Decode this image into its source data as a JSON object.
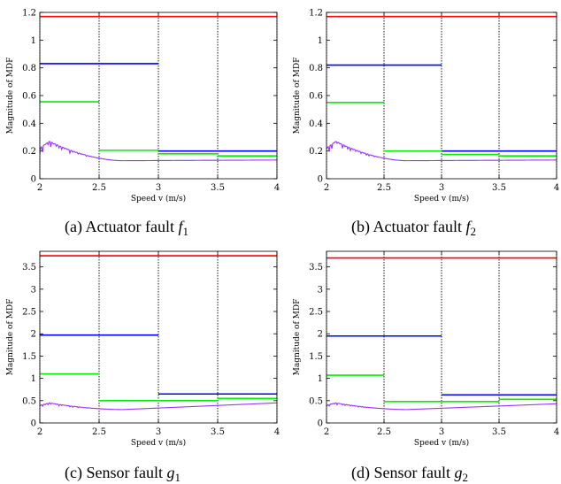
{
  "colors": {
    "red": "#ff0000",
    "blue": "#0000ff",
    "green": "#00ee00",
    "purple": "#9933ff"
  },
  "chart_data": [
    {
      "type": "line",
      "caption_prefix": "(a) Actuator fault",
      "caption_sym": "f",
      "caption_sub": "1",
      "xlabel": "Speed v (m/s)",
      "ylabel": "Magnitude of MDF",
      "xlim": [
        2,
        4
      ],
      "ylim": [
        0,
        1.2
      ],
      "xticks": [
        "2",
        "2.5",
        "3",
        "3.5",
        "4"
      ],
      "yticks": [
        "0",
        "0.2",
        "0.4",
        "0.6",
        "0.8",
        "1",
        "1.2"
      ],
      "vlines": [
        2,
        2.5,
        3,
        3.5,
        4
      ],
      "series": [
        {
          "color": "red",
          "segments": [
            [
              2,
              4,
              1.17
            ]
          ]
        },
        {
          "color": "blue",
          "segments": [
            [
              2,
              3,
              0.83
            ],
            [
              3,
              4,
              0.2
            ]
          ]
        },
        {
          "color": "green",
          "segments": [
            [
              2,
              2.5,
              0.555
            ],
            [
              2.5,
              3,
              0.205
            ],
            [
              3,
              3.5,
              0.18
            ],
            [
              3.5,
              4,
              0.165
            ]
          ]
        },
        {
          "color": "purple",
          "curve": {
            "base": 0.13,
            "peak": 0.27,
            "end": 0.135
          }
        }
      ]
    },
    {
      "type": "line",
      "caption_prefix": "(b) Actuator fault",
      "caption_sym": "f",
      "caption_sub": "2",
      "xlabel": "Speed v (m/s)",
      "ylabel": "Magnitude of MDF",
      "xlim": [
        2,
        4
      ],
      "ylim": [
        0,
        1.2
      ],
      "xticks": [
        "2",
        "2.5",
        "3",
        "3.5",
        "4"
      ],
      "yticks": [
        "0",
        "0.2",
        "0.4",
        "0.6",
        "0.8",
        "1",
        "1.2"
      ],
      "vlines": [
        2,
        2.5,
        3,
        3.5,
        4
      ],
      "series": [
        {
          "color": "red",
          "segments": [
            [
              2,
              4,
              1.17
            ]
          ]
        },
        {
          "color": "blue",
          "segments": [
            [
              2,
              3,
              0.82
            ],
            [
              3,
              4,
              0.2
            ]
          ]
        },
        {
          "color": "green",
          "segments": [
            [
              2,
              2.5,
              0.55
            ],
            [
              2.5,
              3,
              0.2
            ],
            [
              3,
              3.5,
              0.175
            ],
            [
              3.5,
              4,
              0.165
            ]
          ]
        },
        {
          "color": "purple",
          "curve": {
            "base": 0.13,
            "peak": 0.27,
            "end": 0.135
          }
        }
      ]
    },
    {
      "type": "line",
      "caption_prefix": "(c) Sensor fault",
      "caption_sym": "g",
      "caption_sub": "1",
      "xlabel": "Speed v (m/s)",
      "ylabel": "Magnitude of MDF",
      "xlim": [
        2,
        4
      ],
      "ylim": [
        0,
        3.85
      ],
      "xticks": [
        "2",
        "2.5",
        "3",
        "3.5",
        "4"
      ],
      "yticks": [
        "0",
        "0.5",
        "1",
        "1.5",
        "2",
        "2.5",
        "3",
        "3.5"
      ],
      "vlines": [
        2,
        2.5,
        3,
        3.5,
        4
      ],
      "series": [
        {
          "color": "red",
          "segments": [
            [
              2,
              4,
              3.75
            ]
          ]
        },
        {
          "color": "blue",
          "segments": [
            [
              2,
              3,
              1.97
            ],
            [
              3,
              4,
              0.65
            ]
          ]
        },
        {
          "color": "green",
          "segments": [
            [
              2,
              2.5,
              1.1
            ],
            [
              2.5,
              3,
              0.5
            ],
            [
              3,
              3.5,
              0.5
            ],
            [
              3.5,
              4,
              0.55
            ]
          ]
        },
        {
          "color": "purple",
          "curve": {
            "base": 0.3,
            "peak": 0.45,
            "end": 0.45
          }
        }
      ]
    },
    {
      "type": "line",
      "caption_prefix": "(d) Sensor fault",
      "caption_sym": "g",
      "caption_sub": "2",
      "xlabel": "Speed v (m/s)",
      "ylabel": "Magnitude of MDF",
      "xlim": [
        2,
        4
      ],
      "ylim": [
        0,
        3.85
      ],
      "xticks": [
        "2",
        "2.5",
        "3",
        "3.5",
        "4"
      ],
      "yticks": [
        "0",
        "0.5",
        "1",
        "1.5",
        "2",
        "2.5",
        "3",
        "3.5"
      ],
      "vlines": [
        2,
        2.5,
        3,
        3.5,
        4
      ],
      "series": [
        {
          "color": "red",
          "segments": [
            [
              2,
              4,
              3.7
            ]
          ]
        },
        {
          "color": "blue",
          "segments": [
            [
              2,
              3,
              1.95
            ],
            [
              3,
              4,
              0.63
            ]
          ]
        },
        {
          "color": "green",
          "segments": [
            [
              2,
              2.5,
              1.07
            ],
            [
              2.5,
              3,
              0.48
            ],
            [
              3,
              3.5,
              0.48
            ],
            [
              3.5,
              4,
              0.53
            ]
          ]
        },
        {
          "color": "purple",
          "curve": {
            "base": 0.3,
            "peak": 0.45,
            "end": 0.43
          }
        }
      ]
    }
  ]
}
